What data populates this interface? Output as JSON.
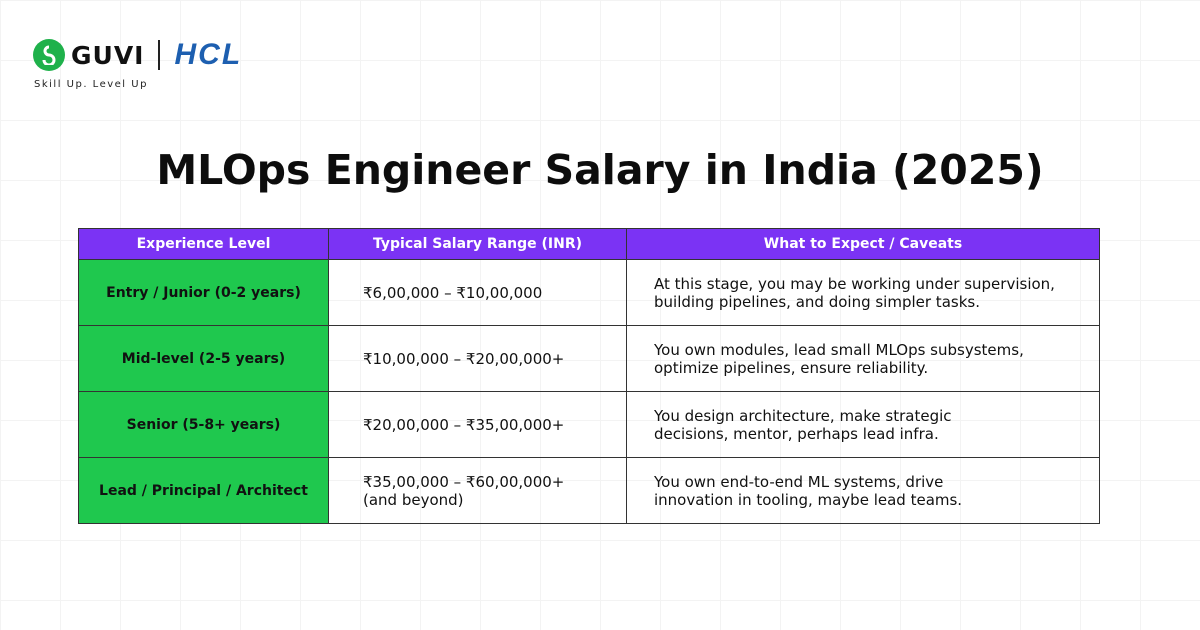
{
  "header": {
    "brand": "GUVI",
    "partner": "HCL",
    "tagline": "Skill Up. Level Up"
  },
  "title": "MLOps Engineer Salary in India (2025)",
  "table": {
    "columns": [
      "Experience Level",
      "Typical Salary Range (INR)",
      "What to Expect / Caveats"
    ],
    "rows": [
      {
        "level": "Entry / Junior (0-2 years)",
        "salary": [
          "₹6,00,000 – ₹10,00,000"
        ],
        "notes": [
          "At this stage, you may be working under supervision,",
          "building pipelines, and doing simpler tasks."
        ]
      },
      {
        "level": "Mid-level (2-5 years)",
        "salary": [
          "₹10,00,000 – ₹20,00,000+"
        ],
        "notes": [
          "You own modules, lead small MLOps subsystems,",
          "optimize pipelines, ensure reliability."
        ]
      },
      {
        "level": "Senior (5-8+ years)",
        "salary": [
          "₹20,00,000 – ₹35,00,000+"
        ],
        "notes": [
          "You design architecture, make strategic",
          "decisions, mentor, perhaps lead infra."
        ]
      },
      {
        "level": "Lead / Principal / Architect",
        "salary": [
          "₹35,00,000 – ₹60,00,000+",
          "(and beyond)"
        ],
        "notes": [
          "You own end-to-end ML systems, drive",
          "innovation in tooling, maybe lead teams."
        ]
      }
    ]
  }
}
